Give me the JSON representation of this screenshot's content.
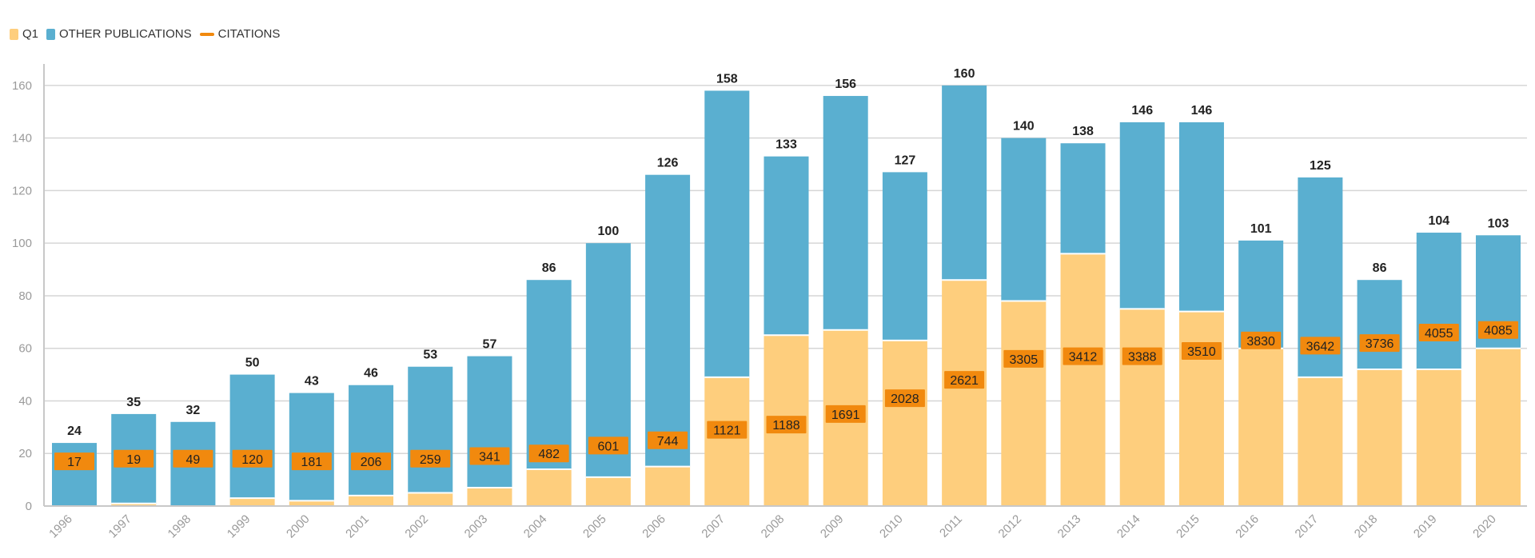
{
  "colors": {
    "q1": "#FECE7D",
    "other": "#5AAFD0",
    "citations": "#F1890E",
    "grid": "#d6d6d6",
    "axis": "#c8c8c8",
    "tick_text": "#9a9a9a",
    "total_text": "#222222"
  },
  "legend": [
    {
      "key": "q1",
      "label": "Q1",
      "marker": "box"
    },
    {
      "key": "other",
      "label": "OTHER PUBLICATIONS",
      "marker": "box"
    },
    {
      "key": "citations",
      "label": "CITATIONS",
      "marker": "line"
    }
  ],
  "chart_data": {
    "type": "bar",
    "stacked": true,
    "categories": [
      "1996",
      "1997",
      "1998",
      "1999",
      "2000",
      "2001",
      "2002",
      "2003",
      "2004",
      "2005",
      "2006",
      "2007",
      "2008",
      "2009",
      "2010",
      "2011",
      "2012",
      "2013",
      "2014",
      "2015",
      "2016",
      "2017",
      "2018",
      "2019",
      "2020"
    ],
    "series": [
      {
        "name": "Q1",
        "values": [
          0,
          1,
          0,
          3,
          2,
          4,
          5,
          7,
          14,
          11,
          15,
          49,
          65,
          67,
          63,
          86,
          78,
          96,
          75,
          74,
          60,
          49,
          52,
          52,
          60
        ]
      },
      {
        "name": "OTHER PUBLICATIONS",
        "values": [
          24,
          34,
          32,
          47,
          41,
          42,
          48,
          50,
          72,
          89,
          111,
          109,
          68,
          89,
          64,
          74,
          62,
          42,
          71,
          72,
          41,
          76,
          34,
          52,
          43
        ]
      }
    ],
    "totals": [
      24,
      35,
      32,
      50,
      43,
      46,
      53,
      57,
      86,
      100,
      126,
      158,
      133,
      156,
      127,
      160,
      140,
      138,
      146,
      146,
      101,
      125,
      86,
      104,
      103
    ],
    "citations": {
      "name": "CITATIONS",
      "values": [
        17,
        19,
        49,
        120,
        181,
        206,
        259,
        341,
        482,
        601,
        744,
        1121,
        1188,
        1691,
        2028,
        2621,
        3305,
        3412,
        3388,
        3510,
        3830,
        3642,
        3736,
        4055,
        4085
      ],
      "label_positions_on_left_axis": [
        17,
        18,
        18,
        18,
        17,
        17,
        18,
        19,
        20,
        23,
        25,
        29,
        31,
        35,
        41,
        48,
        56,
        57,
        57,
        59,
        63,
        61,
        62,
        66,
        67
      ]
    },
    "ylim": [
      0,
      170
    ],
    "yticks": [
      0,
      20,
      40,
      60,
      80,
      100,
      120,
      140,
      160
    ],
    "xlabel": "",
    "ylabel": "",
    "grid": true,
    "legend_position": "top-left"
  }
}
